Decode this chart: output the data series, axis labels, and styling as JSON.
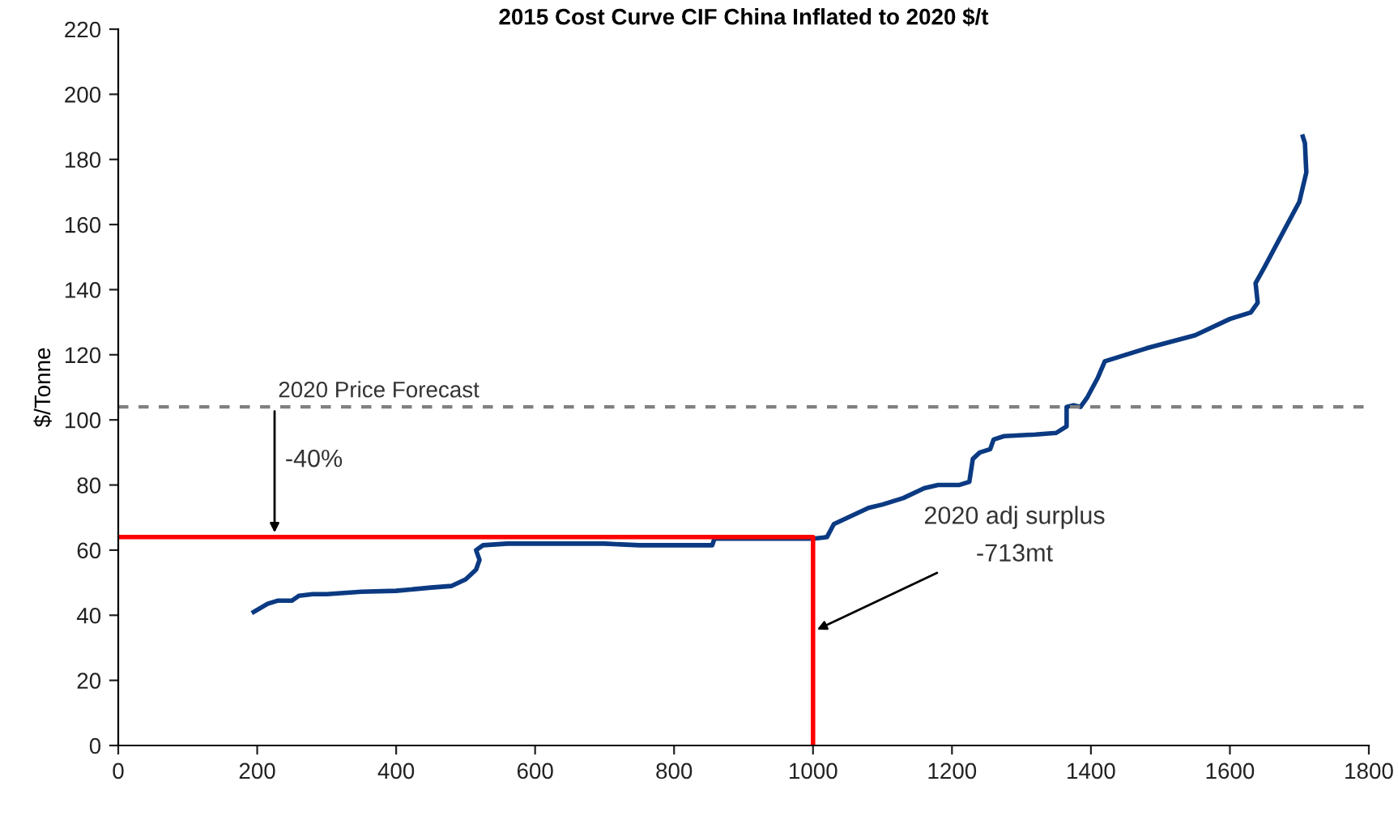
{
  "chart_data": {
    "type": "line",
    "title": "2015 Cost Curve CIF China Inflated to 2020 $/t",
    "ylabel": "$/Tonne",
    "xlim": [
      0,
      1800
    ],
    "xticks": [
      0,
      200,
      400,
      600,
      800,
      1000,
      1200,
      1400,
      1600,
      1800
    ],
    "ylim": [
      0,
      220
    ],
    "yticks": [
      0,
      20,
      40,
      60,
      80,
      100,
      120,
      140,
      160,
      180,
      200,
      220
    ],
    "grid": false,
    "legend": false,
    "series": [
      {
        "color": "#0b3a82",
        "x": [
          195,
          215,
          230,
          250,
          260,
          280,
          300,
          350,
          400,
          450,
          480,
          500,
          515,
          520,
          515,
          525,
          560,
          650,
          700,
          750,
          855,
          858,
          900,
          1000,
          1020,
          1030,
          1050,
          1080,
          1100,
          1130,
          1160,
          1180,
          1210,
          1225,
          1230,
          1240,
          1255,
          1260,
          1275,
          1320,
          1350,
          1365,
          1365,
          1375,
          1385,
          1395,
          1410,
          1420,
          1450,
          1480,
          1550,
          1600,
          1630,
          1640,
          1637,
          1650,
          1670,
          1700,
          1710,
          1708,
          1705
        ],
        "values": [
          41,
          43.5,
          44.5,
          44.5,
          46,
          46.5,
          46.5,
          47.2,
          47.5,
          48.5,
          49,
          51,
          54,
          57,
          60,
          61.5,
          62,
          62,
          62,
          61.5,
          61.5,
          63.5,
          63.5,
          63.5,
          64,
          68,
          70,
          73,
          74,
          76,
          79,
          80,
          80,
          81,
          88,
          90,
          91,
          94,
          95,
          95.5,
          96,
          98,
          104,
          104.5,
          104,
          107,
          113,
          118,
          120,
          122,
          126,
          131,
          133,
          136,
          142,
          147,
          155,
          167,
          176,
          185,
          187
        ]
      },
      {
        "color": "#ff0000",
        "x": [
          0,
          1000,
          1000
        ],
        "values": [
          64,
          64,
          0
        ]
      }
    ],
    "ref_lines": [
      {
        "axis": "y",
        "value": 104,
        "label": "2020 Price Forecast",
        "color": "#808080",
        "line_style": "dashed"
      }
    ],
    "annotations": [
      {
        "text": "-40%",
        "x": 225,
        "y": 64
      },
      {
        "text": "2020 adj surplus\n-713mt",
        "x": 1000,
        "y": 35
      }
    ]
  }
}
